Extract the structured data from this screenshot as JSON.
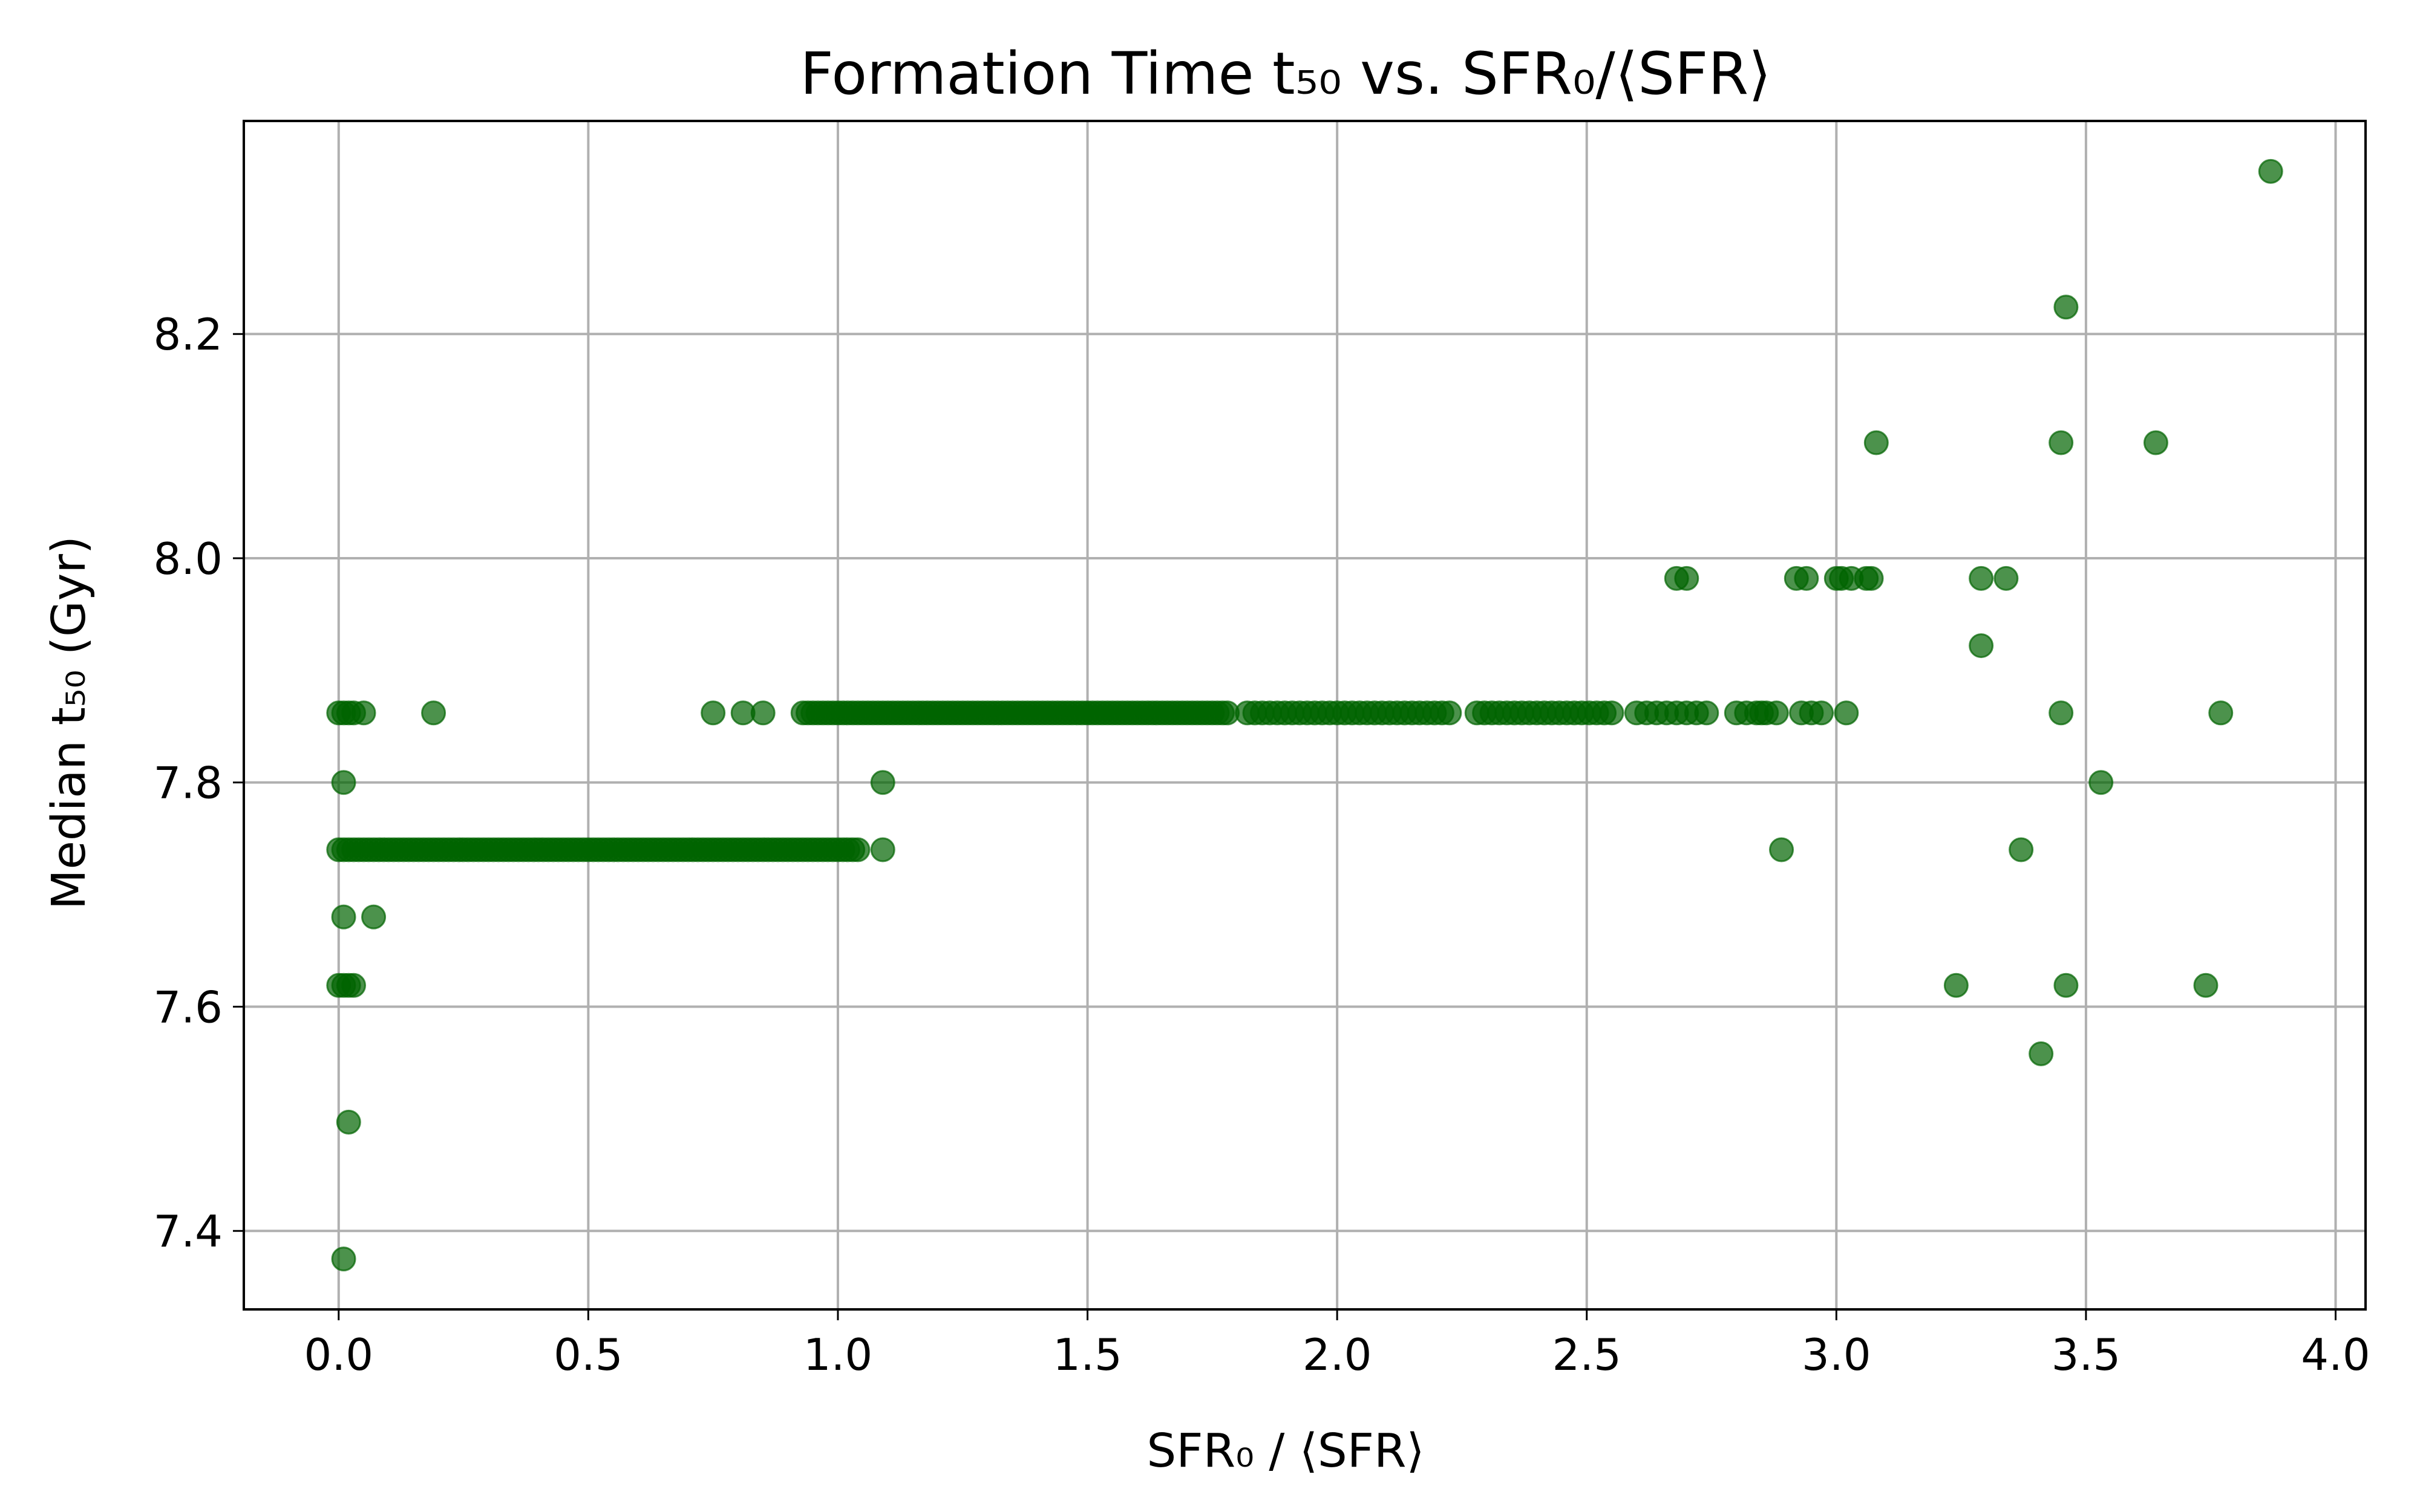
{
  "chart_data": {
    "type": "scatter",
    "title": "Formation Time t₅₀ vs. SFR₀/⟨SFR⟩",
    "xlabel": "SFR₀ / ⟨SFR⟩",
    "ylabel": "Median t₅₀ (Gyr)",
    "xlim": [
      -0.19,
      4.06
    ],
    "ylim": [
      7.33,
      8.39
    ],
    "xticks": [
      "0.0",
      "0.5",
      "1.0",
      "1.5",
      "2.0",
      "2.5",
      "3.0",
      "3.5",
      "4.0"
    ],
    "yticks": [
      "7.4",
      "7.6",
      "7.8",
      "8.0",
      "8.2"
    ],
    "grid": true,
    "marker_color": "#006400",
    "marker_alpha": 0.7,
    "series": [
      {
        "points": [
          [
            0.01,
            7.375
          ],
          [
            0.02,
            7.497
          ],
          [
            0.0,
            7.619
          ],
          [
            0.01,
            7.619
          ],
          [
            0.02,
            7.619
          ],
          [
            0.03,
            7.619
          ],
          [
            0.01,
            7.68
          ],
          [
            0.07,
            7.68
          ],
          [
            0.01,
            7.8
          ],
          [
            1.09,
            7.8
          ],
          [
            3.53,
            7.8
          ],
          [
            0.0,
            7.862
          ],
          [
            0.01,
            7.862
          ],
          [
            0.02,
            7.862
          ],
          [
            0.03,
            7.862
          ],
          [
            0.05,
            7.862
          ],
          [
            0.19,
            7.862
          ],
          [
            0.75,
            7.862
          ],
          [
            0.81,
            7.862
          ],
          [
            0.85,
            7.862
          ],
          [
            2.89,
            7.74
          ],
          [
            3.37,
            7.74
          ],
          [
            1.09,
            7.74
          ],
          [
            2.68,
            7.982
          ],
          [
            2.7,
            7.982
          ],
          [
            2.92,
            7.982
          ],
          [
            2.94,
            7.982
          ],
          [
            3.0,
            7.982
          ],
          [
            3.01,
            7.982
          ],
          [
            3.03,
            7.982
          ],
          [
            3.06,
            7.982
          ],
          [
            3.07,
            7.982
          ],
          [
            3.29,
            7.982
          ],
          [
            3.34,
            7.982
          ],
          [
            3.29,
            7.922
          ],
          [
            3.08,
            8.103
          ],
          [
            3.45,
            8.103
          ],
          [
            3.64,
            8.103
          ],
          [
            3.46,
            8.224
          ],
          [
            3.87,
            8.345
          ],
          [
            3.24,
            7.619
          ],
          [
            3.46,
            7.619
          ],
          [
            3.74,
            7.619
          ],
          [
            3.41,
            7.558
          ],
          [
            3.45,
            7.862
          ],
          [
            3.77,
            7.862
          ],
          [
            3.02,
            7.862
          ],
          [
            2.85,
            7.862
          ],
          [
            2.88,
            7.862
          ],
          [
            2.93,
            7.862
          ],
          [
            2.95,
            7.862
          ],
          [
            2.97,
            7.862
          ]
        ],
        "runs": [
          {
            "y": 7.74,
            "x_start": 0.0,
            "x_end": 1.04,
            "step": 0.01
          },
          {
            "y": 7.862,
            "x_start": 0.93,
            "x_end": 1.78,
            "step": 0.01
          },
          {
            "y": 7.862,
            "x_start": 1.82,
            "x_end": 2.23,
            "step": 0.015
          },
          {
            "y": 7.862,
            "x_start": 2.28,
            "x_end": 2.56,
            "step": 0.015
          },
          {
            "y": 7.862,
            "x_start": 2.6,
            "x_end": 2.74,
            "step": 0.02
          },
          {
            "y": 7.862,
            "x_start": 2.8,
            "x_end": 2.86,
            "step": 0.02
          }
        ]
      }
    ]
  }
}
